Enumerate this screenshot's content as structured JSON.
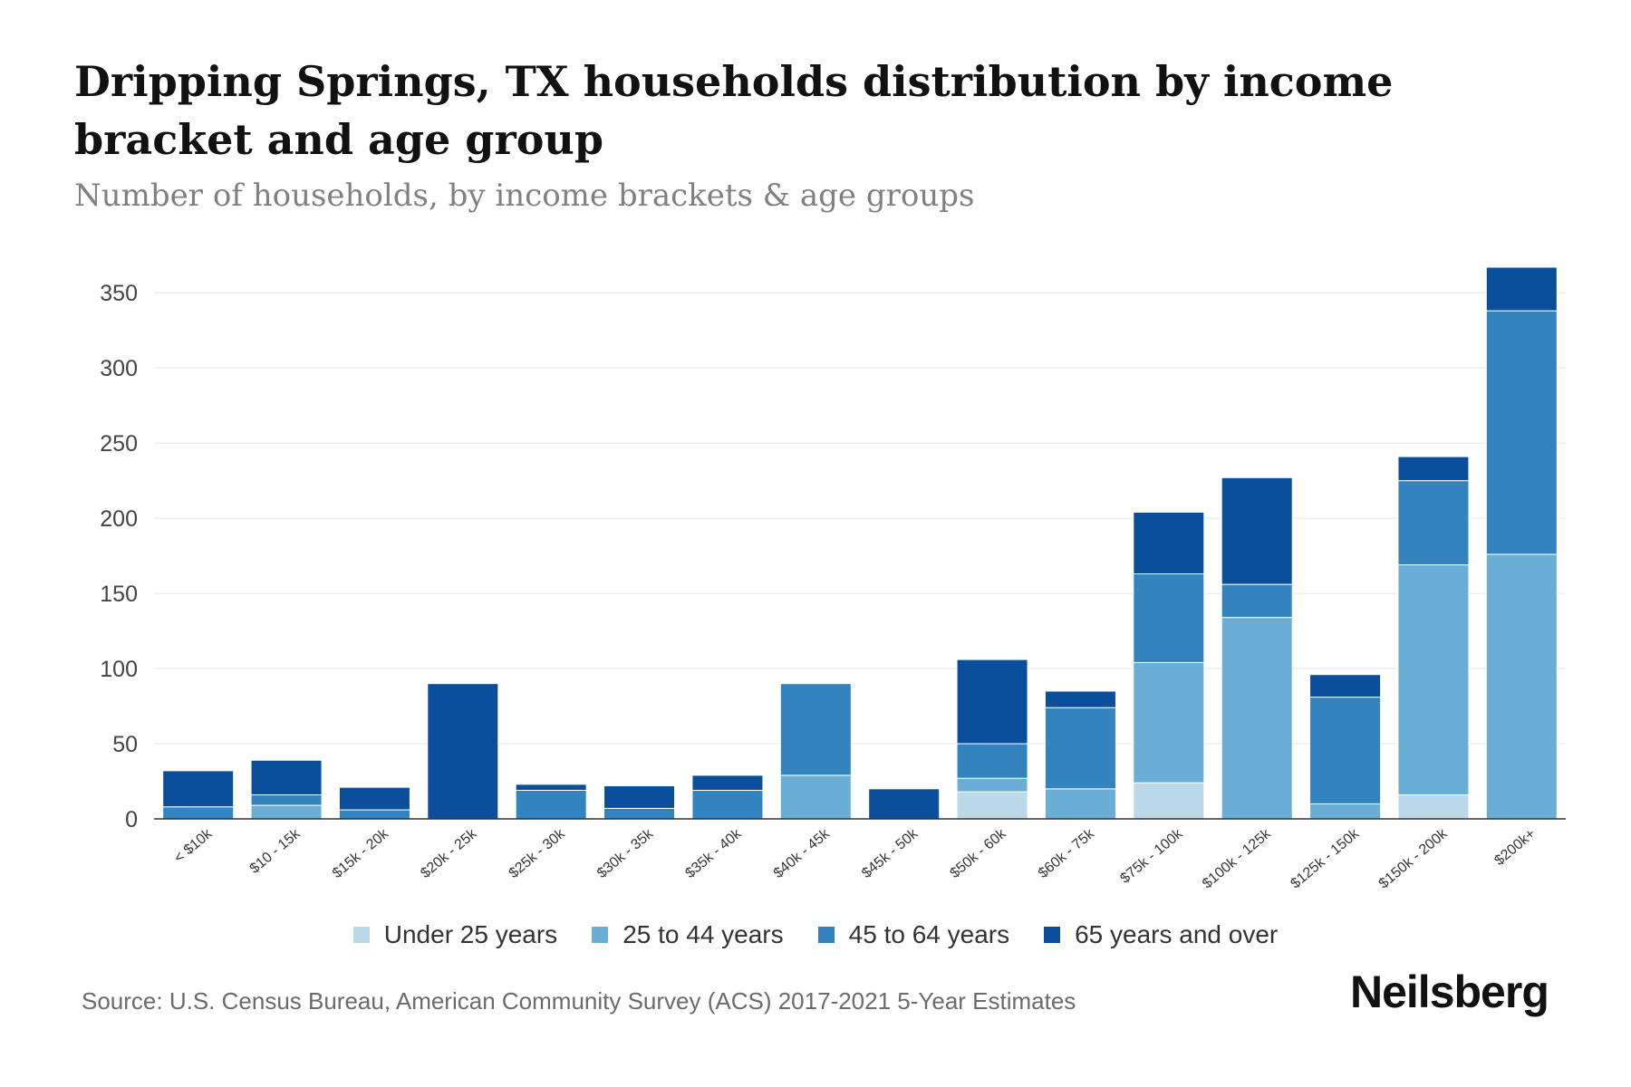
{
  "header": {
    "title": "Dripping Springs, TX households distribution by income bracket and age group",
    "subtitle": "Number of households, by income brackets & age groups"
  },
  "footer": {
    "source": "Source: U.S. Census Bureau, American Community Survey (ACS) 2017-2021 5-Year Estimates",
    "brand": "Neilsberg"
  },
  "colors": {
    "under_25": "#bcd9ea",
    "age_25_44": "#6aaed6",
    "age_45_64": "#3383be",
    "age_65_over": "#0b4f9c",
    "grid": "#e6e6e6",
    "axis": "#333333"
  },
  "chart_data": {
    "type": "bar",
    "stacked": true,
    "title": "Dripping Springs, TX households distribution by income bracket and age group",
    "subtitle": "Number of households, by income brackets & age groups",
    "xlabel": "",
    "ylabel": "",
    "ylim": [
      0,
      370
    ],
    "yticks": [
      0,
      50,
      100,
      150,
      200,
      250,
      300,
      350
    ],
    "grid": true,
    "legend_position": "bottom",
    "categories": [
      "< $10k",
      "$10 - 15k",
      "$15k - 20k",
      "$20k - 25k",
      "$25k - 30k",
      "$30k - 35k",
      "$35k - 40k",
      "$40k - 45k",
      "$45k - 50k",
      "$50k - 60k",
      "$60k - 75k",
      "$75k - 100k",
      "$100k - 125k",
      "$125k - 150k",
      "$150k - 200k",
      "$200k+"
    ],
    "series": [
      {
        "name": "Under 25 years",
        "color": "#bcd9ea",
        "values": [
          0,
          0,
          0,
          0,
          0,
          0,
          0,
          0,
          0,
          18,
          0,
          24,
          0,
          0,
          16,
          0
        ]
      },
      {
        "name": "25 to 44 years",
        "color": "#6aaed6",
        "values": [
          0,
          9,
          0,
          0,
          0,
          0,
          0,
          29,
          0,
          9,
          20,
          80,
          134,
          10,
          153,
          176
        ]
      },
      {
        "name": "45 to 64 years",
        "color": "#3383be",
        "values": [
          8,
          7,
          6,
          0,
          19,
          7,
          19,
          61,
          0,
          23,
          54,
          59,
          22,
          71,
          56,
          162
        ]
      },
      {
        "name": "65 years and over",
        "color": "#0b4f9c",
        "values": [
          24,
          23,
          15,
          90,
          4,
          15,
          10,
          0,
          20,
          56,
          11,
          41,
          71,
          15,
          16,
          29
        ]
      }
    ]
  }
}
